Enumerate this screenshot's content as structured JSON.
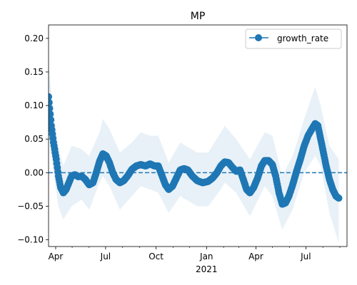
{
  "chart_data": {
    "type": "line",
    "title": "MP",
    "xlabel": "",
    "ylabel": "",
    "xlim": [
      "2020-03-19",
      "2021-09-14"
    ],
    "ylim": [
      -0.11,
      0.22
    ],
    "grid": false,
    "legend_position": "top-right",
    "colors": {
      "series": "#1f77b4",
      "band": "#1f77b4",
      "reference": "#1f77b4"
    },
    "x_ticks": [
      {
        "date": "2020-04-01",
        "label": "Apr"
      },
      {
        "date": "2020-07-01",
        "label": "Jul"
      },
      {
        "date": "2020-10-01",
        "label": "Oct"
      },
      {
        "date": "2021-01-01",
        "label": "Jan",
        "sublabel": "2021"
      },
      {
        "date": "2021-04-01",
        "label": "Apr"
      },
      {
        "date": "2021-07-01",
        "label": "Jul"
      }
    ],
    "x_minor_ticks": [
      "2020-05-01",
      "2020-06-01",
      "2020-08-01",
      "2020-09-01",
      "2020-11-01",
      "2020-12-01",
      "2021-02-01",
      "2021-03-01",
      "2021-05-01",
      "2021-06-01",
      "2021-08-01",
      "2021-09-01"
    ],
    "y_ticks": [
      -0.1,
      -0.05,
      0.0,
      0.05,
      0.1,
      0.15,
      0.2
    ],
    "y_tick_labels": [
      "−0.10",
      "−0.05",
      "0.00",
      "0.05",
      "0.10",
      "0.15",
      "0.20"
    ],
    "reference_line": {
      "y": 0.0,
      "style": "dashed"
    },
    "series": [
      {
        "name": "growth_rate",
        "marker": "circle",
        "points": [
          {
            "x": "2020-03-19",
            "y": 0.113
          },
          {
            "x": "2020-03-24",
            "y": 0.07
          },
          {
            "x": "2020-03-28",
            "y": 0.045
          },
          {
            "x": "2020-04-02",
            "y": 0.02
          },
          {
            "x": "2020-04-06",
            "y": -0.005
          },
          {
            "x": "2020-04-10",
            "y": -0.022
          },
          {
            "x": "2020-04-15",
            "y": -0.03
          },
          {
            "x": "2020-04-20",
            "y": -0.025
          },
          {
            "x": "2020-04-25",
            "y": -0.015
          },
          {
            "x": "2020-04-30",
            "y": -0.005
          },
          {
            "x": "2020-05-06",
            "y": -0.003
          },
          {
            "x": "2020-05-12",
            "y": -0.006
          },
          {
            "x": "2020-05-18",
            "y": -0.005
          },
          {
            "x": "2020-05-25",
            "y": -0.01
          },
          {
            "x": "2020-06-01",
            "y": -0.018
          },
          {
            "x": "2020-06-08",
            "y": -0.015
          },
          {
            "x": "2020-06-14",
            "y": 0.0
          },
          {
            "x": "2020-06-20",
            "y": 0.017
          },
          {
            "x": "2020-06-26",
            "y": 0.028
          },
          {
            "x": "2020-07-02",
            "y": 0.025
          },
          {
            "x": "2020-07-08",
            "y": 0.015
          },
          {
            "x": "2020-07-14",
            "y": 0.0
          },
          {
            "x": "2020-07-20",
            "y": -0.01
          },
          {
            "x": "2020-07-27",
            "y": -0.015
          },
          {
            "x": "2020-08-03",
            "y": -0.012
          },
          {
            "x": "2020-08-10",
            "y": -0.005
          },
          {
            "x": "2020-08-18",
            "y": 0.005
          },
          {
            "x": "2020-08-26",
            "y": 0.01
          },
          {
            "x": "2020-09-03",
            "y": 0.012
          },
          {
            "x": "2020-09-12",
            "y": 0.01
          },
          {
            "x": "2020-09-20",
            "y": 0.013
          },
          {
            "x": "2020-09-28",
            "y": 0.01
          },
          {
            "x": "2020-10-05",
            "y": 0.01
          },
          {
            "x": "2020-10-12",
            "y": -0.005
          },
          {
            "x": "2020-10-18",
            "y": -0.018
          },
          {
            "x": "2020-10-24",
            "y": -0.025
          },
          {
            "x": "2020-10-31",
            "y": -0.02
          },
          {
            "x": "2020-11-07",
            "y": -0.008
          },
          {
            "x": "2020-11-14",
            "y": 0.004
          },
          {
            "x": "2020-11-21",
            "y": 0.006
          },
          {
            "x": "2020-11-28",
            "y": 0.004
          },
          {
            "x": "2020-12-06",
            "y": -0.005
          },
          {
            "x": "2020-12-15",
            "y": -0.012
          },
          {
            "x": "2020-12-25",
            "y": -0.015
          },
          {
            "x": "2021-01-04",
            "y": -0.013
          },
          {
            "x": "2021-01-12",
            "y": -0.008
          },
          {
            "x": "2021-01-20",
            "y": 0.0
          },
          {
            "x": "2021-01-27",
            "y": 0.01
          },
          {
            "x": "2021-02-03",
            "y": 0.016
          },
          {
            "x": "2021-02-10",
            "y": 0.015
          },
          {
            "x": "2021-02-17",
            "y": 0.008
          },
          {
            "x": "2021-02-24",
            "y": 0.002
          },
          {
            "x": "2021-03-03",
            "y": 0.004
          },
          {
            "x": "2021-03-09",
            "y": -0.01
          },
          {
            "x": "2021-03-15",
            "y": -0.025
          },
          {
            "x": "2021-03-21",
            "y": -0.03
          },
          {
            "x": "2021-03-28",
            "y": -0.022
          },
          {
            "x": "2021-04-04",
            "y": -0.008
          },
          {
            "x": "2021-04-11",
            "y": 0.01
          },
          {
            "x": "2021-04-17",
            "y": 0.018
          },
          {
            "x": "2021-04-24",
            "y": 0.018
          },
          {
            "x": "2021-05-01",
            "y": 0.012
          },
          {
            "x": "2021-05-07",
            "y": -0.005
          },
          {
            "x": "2021-05-13",
            "y": -0.03
          },
          {
            "x": "2021-05-19",
            "y": -0.047
          },
          {
            "x": "2021-05-25",
            "y": -0.045
          },
          {
            "x": "2021-05-31",
            "y": -0.035
          },
          {
            "x": "2021-06-07",
            "y": -0.018
          },
          {
            "x": "2021-06-14",
            "y": 0.002
          },
          {
            "x": "2021-06-21",
            "y": 0.02
          },
          {
            "x": "2021-06-28",
            "y": 0.04
          },
          {
            "x": "2021-07-05",
            "y": 0.055
          },
          {
            "x": "2021-07-12",
            "y": 0.065
          },
          {
            "x": "2021-07-18",
            "y": 0.073
          },
          {
            "x": "2021-07-23",
            "y": 0.07
          },
          {
            "x": "2021-07-28",
            "y": 0.05
          },
          {
            "x": "2021-08-02",
            "y": 0.03
          },
          {
            "x": "2021-08-07",
            "y": 0.01
          },
          {
            "x": "2021-08-13",
            "y": -0.01
          },
          {
            "x": "2021-08-19",
            "y": -0.025
          },
          {
            "x": "2021-08-25",
            "y": -0.035
          },
          {
            "x": "2021-08-30",
            "y": -0.038
          }
        ]
      }
    ],
    "band": {
      "points": [
        {
          "x": "2020-03-19",
          "lower": 0.06,
          "upper": 0.162
        },
        {
          "x": "2020-03-28",
          "lower": 0.0,
          "upper": 0.09
        },
        {
          "x": "2020-04-06",
          "lower": -0.05,
          "upper": 0.04
        },
        {
          "x": "2020-04-15",
          "lower": -0.07,
          "upper": 0.01
        },
        {
          "x": "2020-04-30",
          "lower": -0.05,
          "upper": 0.04
        },
        {
          "x": "2020-05-18",
          "lower": -0.04,
          "upper": 0.035
        },
        {
          "x": "2020-06-01",
          "lower": -0.055,
          "upper": 0.025
        },
        {
          "x": "2020-06-20",
          "lower": -0.015,
          "upper": 0.06
        },
        {
          "x": "2020-06-26",
          "lower": -0.005,
          "upper": 0.08
        },
        {
          "x": "2020-07-08",
          "lower": -0.02,
          "upper": 0.065
        },
        {
          "x": "2020-07-27",
          "lower": -0.055,
          "upper": 0.03
        },
        {
          "x": "2020-08-18",
          "lower": -0.035,
          "upper": 0.045
        },
        {
          "x": "2020-09-03",
          "lower": -0.02,
          "upper": 0.06
        },
        {
          "x": "2020-09-20",
          "lower": -0.025,
          "upper": 0.055
        },
        {
          "x": "2020-10-05",
          "lower": -0.03,
          "upper": 0.055
        },
        {
          "x": "2020-10-24",
          "lower": -0.06,
          "upper": 0.015
        },
        {
          "x": "2020-11-14",
          "lower": -0.035,
          "upper": 0.045
        },
        {
          "x": "2020-12-15",
          "lower": -0.05,
          "upper": 0.03
        },
        {
          "x": "2021-01-04",
          "lower": -0.05,
          "upper": 0.03
        },
        {
          "x": "2021-01-27",
          "lower": -0.025,
          "upper": 0.06
        },
        {
          "x": "2021-02-03",
          "lower": -0.015,
          "upper": 0.07
        },
        {
          "x": "2021-02-24",
          "lower": -0.03,
          "upper": 0.05
        },
        {
          "x": "2021-03-21",
          "lower": -0.065,
          "upper": 0.02
        },
        {
          "x": "2021-04-17",
          "lower": -0.02,
          "upper": 0.06
        },
        {
          "x": "2021-05-01",
          "lower": -0.035,
          "upper": 0.055
        },
        {
          "x": "2021-05-19",
          "lower": -0.085,
          "upper": -0.005
        },
        {
          "x": "2021-06-07",
          "lower": -0.055,
          "upper": 0.025
        },
        {
          "x": "2021-06-28",
          "lower": 0.0,
          "upper": 0.08
        },
        {
          "x": "2021-07-18",
          "lower": 0.025,
          "upper": 0.128
        },
        {
          "x": "2021-07-28",
          "lower": 0.01,
          "upper": 0.1
        },
        {
          "x": "2021-08-13",
          "lower": -0.06,
          "upper": 0.04
        },
        {
          "x": "2021-08-30",
          "lower": -0.105,
          "upper": 0.02
        }
      ]
    }
  }
}
